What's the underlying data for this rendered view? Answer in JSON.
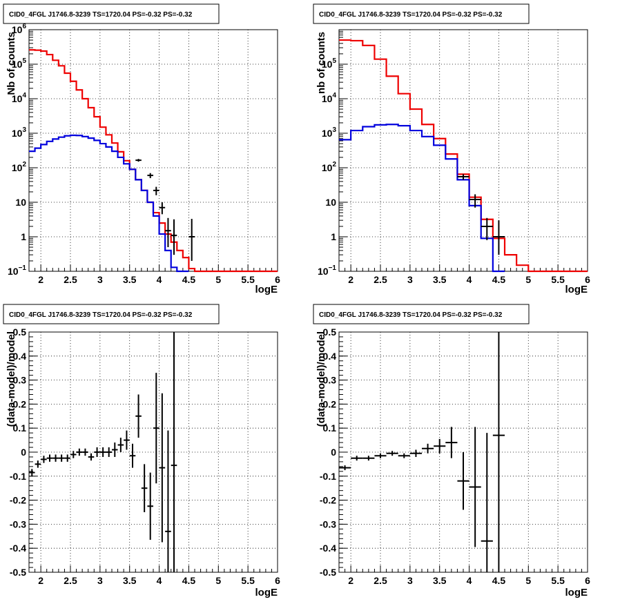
{
  "colors": {
    "data": "#000000",
    "total_model": "#ee0000",
    "source_model": "#0000dd",
    "grid": "#000000"
  },
  "chart_data": [
    {
      "type": "line",
      "title": "CID0_4FGL J1746.8-3239 TS=1720.04 PS=-0.32 PS=-0.32",
      "xlabel": "logE",
      "ylabel": "Nb of counts",
      "xlim": [
        1.8,
        6.0
      ],
      "ylim": [
        0.1,
        1000000
      ],
      "yscale": "log",
      "grid": true,
      "xticks": [
        "2",
        "2.5",
        "3",
        "3.5",
        "4",
        "4.5",
        "5",
        "5.5",
        "6"
      ],
      "yticks": [
        {
          "v": 0.1,
          "b": "10",
          "e": "−1"
        },
        {
          "v": 1,
          "b": "1",
          "e": ""
        },
        {
          "v": 10,
          "b": "10",
          "e": ""
        },
        {
          "v": 100,
          "b": "10",
          "e": "2"
        },
        {
          "v": 1000,
          "b": "10",
          "e": "3"
        },
        {
          "v": 10000,
          "b": "10",
          "e": "4"
        },
        {
          "v": 100000,
          "b": "10",
          "e": "5"
        },
        {
          "v": 1000000,
          "b": "10",
          "e": "6"
        }
      ],
      "bin_width": 0.1,
      "series": [
        {
          "name": "model",
          "x": [
            1.85,
            1.95,
            2.05,
            2.15,
            2.25,
            2.35,
            2.45,
            2.55,
            2.65,
            2.75,
            2.85,
            2.95,
            3.05,
            3.15,
            3.25,
            3.35,
            3.45,
            3.55,
            3.65,
            3.75,
            3.85,
            3.95,
            4.05,
            4.15,
            4.25,
            4.35,
            4.45,
            4.55,
            4.65,
            4.75,
            4.85,
            4.95,
            5.05,
            5.15,
            5.25,
            5.35,
            5.45,
            5.55,
            5.65,
            5.75,
            5.85,
            5.95
          ],
          "values": [
            260000,
            255000,
            240000,
            190000,
            130000,
            90000,
            55000,
            32000,
            18000,
            10000,
            5500,
            3000,
            1500,
            900,
            520,
            290,
            160,
            90,
            45,
            22,
            10,
            5,
            2.5,
            1.2,
            0.7,
            0.4,
            0.25,
            0.12,
            0.1,
            0.1,
            0.1,
            0.1,
            0.1,
            0.1,
            0.1,
            0.1,
            0.1,
            0.1,
            0.1,
            0.1,
            0.1,
            0.1
          ]
        },
        {
          "name": "source",
          "x": [
            1.85,
            1.95,
            2.05,
            2.15,
            2.25,
            2.35,
            2.45,
            2.55,
            2.65,
            2.75,
            2.85,
            2.95,
            3.05,
            3.15,
            3.25,
            3.35,
            3.45,
            3.55,
            3.65,
            3.75,
            3.85,
            3.95,
            4.05,
            4.15,
            4.25,
            4.35,
            4.45
          ],
          "values": [
            300,
            370,
            470,
            580,
            680,
            770,
            840,
            870,
            860,
            800,
            720,
            620,
            500,
            400,
            300,
            200,
            130,
            90,
            45,
            22,
            10,
            4,
            1.2,
            0.4,
            0.13,
            0.1,
            0.1
          ]
        },
        {
          "name": "data",
          "x": [
            3.65,
            3.85,
            3.95,
            4.05,
            4.15,
            4.25,
            4.55
          ],
          "values": [
            165,
            60,
            22,
            7,
            1.5,
            1.1,
            1.0
          ],
          "err_lo": [
            150,
            50,
            16,
            4.5,
            0.5,
            0.3,
            0.2
          ],
          "err_hi": [
            180,
            70,
            28,
            10,
            3.5,
            3.2,
            3.3
          ]
        }
      ]
    },
    {
      "type": "line",
      "title": "CID0_4FGL J1746.8-3239 TS=1720.04 PS=-0.32 PS=-0.32",
      "xlabel": "logE",
      "ylabel": "nb of counts",
      "xlim": [
        1.8,
        6.0
      ],
      "ylim": [
        0.1,
        1000000
      ],
      "yscale": "log",
      "grid": true,
      "xticks": [
        "2",
        "2.5",
        "3",
        "3.5",
        "4",
        "4.5",
        "5",
        "5.5",
        "6"
      ],
      "yticks": [
        {
          "v": 0.1,
          "b": "10",
          "e": "−1"
        },
        {
          "v": 1,
          "b": "1",
          "e": ""
        },
        {
          "v": 10,
          "b": "10",
          "e": ""
        },
        {
          "v": 100,
          "b": "10",
          "e": "2"
        },
        {
          "v": 1000,
          "b": "10",
          "e": "3"
        },
        {
          "v": 10000,
          "b": "10",
          "e": "4"
        },
        {
          "v": 100000,
          "b": "10",
          "e": "5"
        }
      ],
      "bin_width": 0.2,
      "series": [
        {
          "name": "model",
          "x": [
            1.9,
            2.1,
            2.3,
            2.5,
            2.7,
            2.9,
            3.1,
            3.3,
            3.5,
            3.7,
            3.9,
            4.1,
            4.3,
            4.5,
            4.7,
            4.9,
            5.1,
            5.3,
            5.5,
            5.7,
            5.9
          ],
          "values": [
            500000,
            480000,
            350000,
            140000,
            45000,
            14000,
            5000,
            1800,
            700,
            250,
            65,
            14,
            3.2,
            0.9,
            0.3,
            0.15,
            0.1,
            0.1,
            0.1,
            0.1,
            0.1
          ],
          "display_values": [
            500000,
            480000,
            350000,
            140000,
            45000,
            14000,
            5000,
            1800,
            700,
            250,
            65,
            14,
            3.2,
            0.9,
            0.3,
            0.15,
            0.1,
            0.1,
            0.1,
            0.1,
            0.1
          ]
        },
        {
          "name": "source",
          "x": [
            1.9,
            2.1,
            2.3,
            2.5,
            2.7,
            2.9,
            3.1,
            3.3,
            3.5,
            3.7,
            3.9,
            4.1,
            4.3,
            4.5
          ],
          "values": [
            650,
            1200,
            1550,
            1750,
            1800,
            1650,
            1200,
            800,
            450,
            180,
            45,
            8,
            0.9,
            0.1
          ]
        },
        {
          "name": "data",
          "x": [
            3.9,
            4.1,
            4.3,
            4.5
          ],
          "values": [
            55,
            12,
            2.0,
            1.0
          ],
          "err_lo": [
            45,
            7,
            0.8,
            0.3
          ],
          "err_hi": [
            65,
            17,
            3.5,
            3.0
          ]
        }
      ]
    },
    {
      "type": "scatter",
      "title": "CID0_4FGL J1746.8-3239 TS=1720.04 PS=-0.32 PS=-0.32",
      "xlabel": "logE",
      "ylabel": "(data-model)/model",
      "xlim": [
        1.8,
        6.0
      ],
      "ylim": [
        -0.5,
        0.5
      ],
      "grid": true,
      "xticks": [
        "2",
        "2.5",
        "3",
        "3.5",
        "4",
        "4.5",
        "5",
        "5.5",
        "6"
      ],
      "yticks": [
        "-0.5",
        "-0.4",
        "-0.3",
        "-0.2",
        "-0.1",
        "0",
        "0.1",
        "0.2",
        "0.3",
        "0.4",
        "0.5"
      ],
      "bin_width": 0.1,
      "series": [
        {
          "name": "residuals",
          "x": [
            1.85,
            1.95,
            2.05,
            2.15,
            2.25,
            2.35,
            2.45,
            2.55,
            2.65,
            2.75,
            2.85,
            2.95,
            3.05,
            3.15,
            3.25,
            3.35,
            3.45,
            3.55,
            3.65,
            3.75,
            3.85,
            3.95,
            4.05,
            4.15,
            4.25
          ],
          "values": [
            -0.085,
            -0.05,
            -0.03,
            -0.025,
            -0.025,
            -0.025,
            -0.025,
            -0.01,
            0.0,
            0.0,
            -0.02,
            0.0,
            0.0,
            0.0,
            0.01,
            0.03,
            0.05,
            -0.015,
            0.15,
            -0.15,
            -0.225,
            0.1,
            -0.065,
            -0.33,
            -0.055
          ],
          "errors": [
            0.015,
            0.015,
            0.015,
            0.015,
            0.015,
            0.015,
            0.015,
            0.015,
            0.015,
            0.015,
            0.015,
            0.02,
            0.02,
            0.02,
            0.03,
            0.03,
            0.04,
            0.05,
            0.09,
            0.1,
            0.14,
            0.23,
            0.31,
            0.42,
            0.6
          ]
        }
      ]
    },
    {
      "type": "scatter",
      "title": "CID0_4FGL J1746.8-3239 TS=1720.04 PS=-0.32 PS=-0.32",
      "xlabel": "logE",
      "ylabel": "(data-model)/model",
      "xlim": [
        1.8,
        6.0
      ],
      "ylim": [
        -0.5,
        0.5
      ],
      "grid": true,
      "xticks": [
        "2",
        "2.5",
        "3",
        "3.5",
        "4",
        "4.5",
        "5",
        "5.5",
        "6"
      ],
      "yticks": [
        "-0.5",
        "-0.4",
        "-0.3",
        "-0.2",
        "-0.1",
        "0",
        "0.1",
        "0.2",
        "0.3",
        "0.4",
        "0.5"
      ],
      "bin_width": 0.2,
      "series": [
        {
          "name": "residuals",
          "x": [
            1.9,
            2.1,
            2.3,
            2.5,
            2.7,
            2.9,
            3.1,
            3.3,
            3.5,
            3.7,
            3.9,
            4.1,
            4.3,
            4.5
          ],
          "values": [
            -0.065,
            -0.025,
            -0.025,
            -0.015,
            -0.005,
            -0.015,
            -0.005,
            0.015,
            0.025,
            0.04,
            -0.12,
            -0.145,
            -0.37,
            0.07
          ],
          "errors": [
            0.01,
            0.01,
            0.01,
            0.01,
            0.01,
            0.01,
            0.015,
            0.02,
            0.03,
            0.065,
            0.12,
            0.25,
            0.45,
            0.6
          ]
        }
      ]
    }
  ]
}
